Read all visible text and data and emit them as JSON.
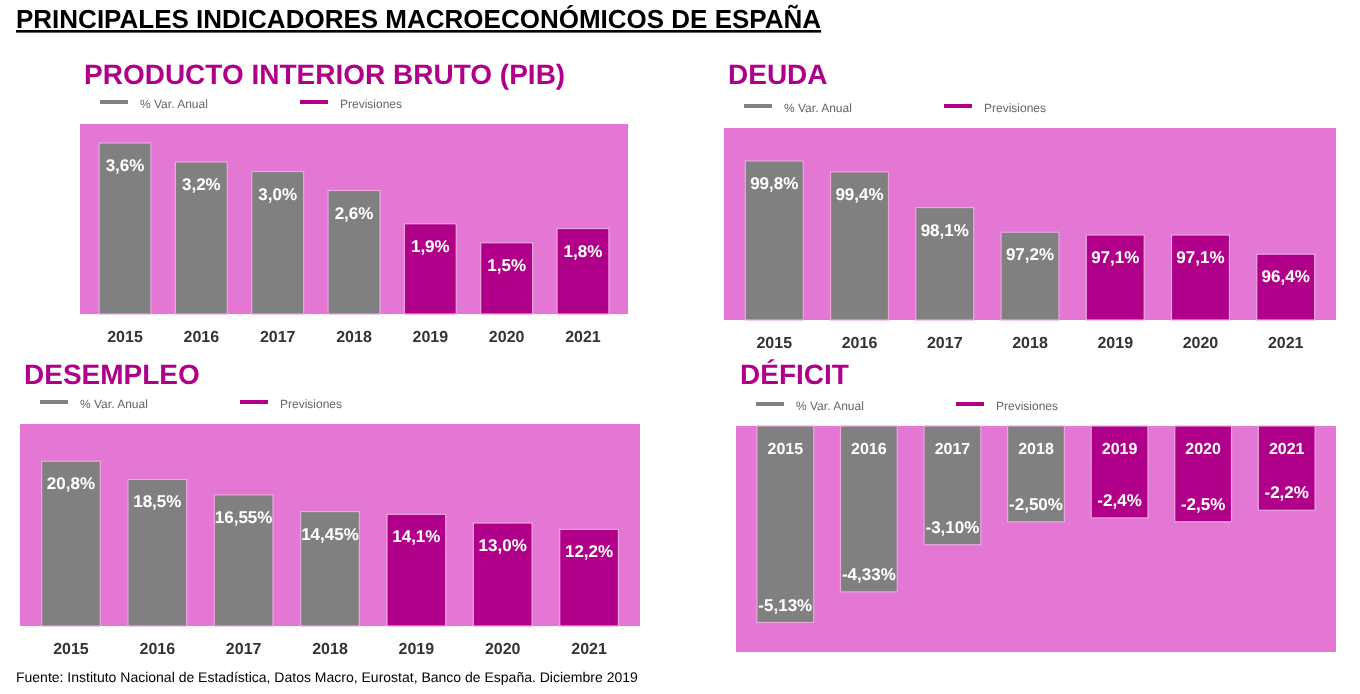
{
  "chart_data": [
    {
      "type": "bar",
      "title": "PRODUCTO INTERIOR BRUTO (PIB)",
      "annotations": [
        "PRINCIPALES INDICADORES MACROECONÓMICOS DE ESPAÑA"
      ],
      "categories": [
        "2015",
        "2016",
        "2017",
        "2018",
        "2019",
        "2020",
        "2021"
      ],
      "ylim": [
        0,
        4
      ],
      "legend": "top left",
      "data_labels": true,
      "series": [
        {
          "name": "% Var. Anual",
          "color": "#808080",
          "values": [
            3.6,
            3.2,
            3.0,
            2.6,
            null,
            null,
            null
          ],
          "value_labels": [
            "3,6%",
            "3,2%",
            "3,0%",
            "2,6%",
            null,
            null,
            null
          ]
        },
        {
          "name": "Previsiones",
          "color": "#b0008a",
          "values": [
            null,
            null,
            null,
            null,
            1.9,
            1.5,
            1.8
          ],
          "value_labels": [
            null,
            null,
            null,
            null,
            "1,9%",
            "1,5%",
            "1,8%"
          ]
        }
      ]
    },
    {
      "type": "bar",
      "title": "DEUDA",
      "categories": [
        "2015",
        "2016",
        "2017",
        "2018",
        "2019",
        "2020",
        "2021"
      ],
      "ylim": [
        94,
        101
      ],
      "legend": "top left",
      "data_labels": true,
      "series": [
        {
          "name": "% Var. Anual",
          "color": "#808080",
          "values": [
            99.8,
            99.4,
            98.1,
            97.2,
            null,
            null,
            null
          ],
          "value_labels": [
            "99,8%",
            "99,4%",
            "98,1%",
            "97,2%",
            null,
            null,
            null
          ]
        },
        {
          "name": "Previsiones",
          "color": "#b0008a",
          "values": [
            null,
            null,
            null,
            null,
            97.1,
            97.1,
            96.4
          ],
          "value_labels": [
            null,
            null,
            null,
            null,
            "97,1%",
            "97,1%",
            "96,4%"
          ]
        }
      ]
    },
    {
      "type": "bar",
      "title": "DESEMPLEO",
      "annotations": [
        "Fuente: Instituto Nacional de Estadística, Datos Macro, Eurostat, Banco de España. Diciembre 2019"
      ],
      "categories": [
        "2015",
        "2016",
        "2017",
        "2018",
        "2019",
        "2020",
        "2021"
      ],
      "ylim": [
        0,
        25.5
      ],
      "legend": "top left",
      "data_labels": true,
      "series": [
        {
          "name": "% Var. Anual",
          "color": "#808080",
          "values": [
            20.8,
            18.5,
            16.55,
            14.45,
            null,
            null,
            null
          ],
          "value_labels": [
            "20,8%",
            "18,5%",
            "16,55%",
            "14,45%",
            null,
            null,
            null
          ]
        },
        {
          "name": "Previsiones",
          "color": "#b0008a",
          "values": [
            null,
            null,
            null,
            null,
            14.1,
            13.0,
            12.2
          ],
          "value_labels": [
            null,
            null,
            null,
            null,
            "14,1%",
            "13,0%",
            "12,2%"
          ]
        }
      ]
    },
    {
      "type": "bar",
      "title": "DÉFICIT",
      "categories": [
        "2015",
        "2016",
        "2017",
        "2018",
        "2019",
        "2020",
        "2021"
      ],
      "ylim": [
        -5.9,
        0
      ],
      "legend": "top left",
      "data_labels": true,
      "series": [
        {
          "name": "% Var. Anual",
          "color": "#808080",
          "values": [
            -5.13,
            -4.33,
            -3.1,
            -2.5,
            null,
            null,
            null
          ],
          "value_labels": [
            "-5,13%",
            "-4,33%",
            "-3,10%",
            "-2,50%",
            null,
            null,
            null
          ]
        },
        {
          "name": "Previsiones",
          "color": "#b0008a",
          "values": [
            null,
            null,
            null,
            null,
            -2.4,
            -2.5,
            -2.2
          ],
          "value_labels": [
            null,
            null,
            null,
            null,
            "-2,4%",
            "-2,5%",
            "-2,2%"
          ]
        }
      ]
    }
  ]
}
